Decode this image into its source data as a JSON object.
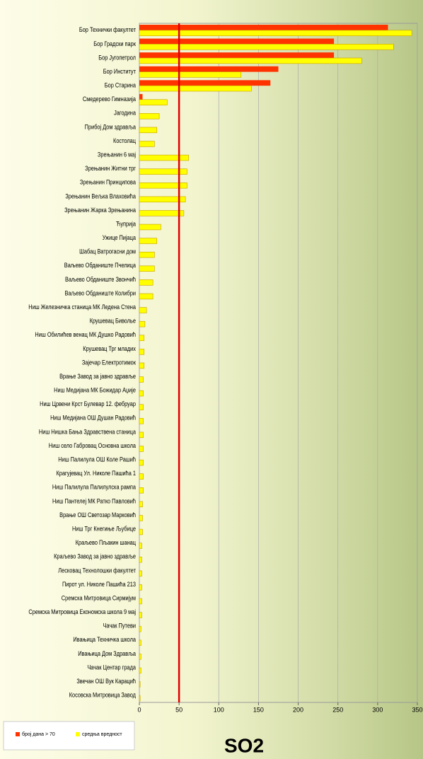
{
  "chart_data": {
    "type": "bar",
    "orientation": "horizontal",
    "title": "SO2",
    "categories": [
      "Бор Технички факултет",
      "Бор Градски парк",
      "Бор Југопетрол",
      "Бор Институт",
      "Бор Старина",
      "Смедерево Гимназија",
      "Јагодина",
      "Прибој Дом здравља",
      "Костолац",
      "Зрењанин 6 мај",
      "Зрењанин Житни трг",
      "Зрењанин Принципова",
      "Зрењанин Вељка Влаховића",
      "Зрењанин Жарка Зрењанина",
      "Ћуприја",
      "Ужице Пијаца",
      "Шабац Ватрогасни дом",
      "Ваљево Обданиште Пчелица",
      "Ваљево Обданиште Звончић",
      "Ваљево Обданиште Колибри",
      "Ниш Железничка станица МК Ледена Стена",
      "Крушевац Биволье",
      "Ниш Обилићев венац МК Душко Радовић",
      "Крушевац Трг младих",
      "Зајечар Електротимок",
      "Врање Завод за јавно здравље",
      "Ниш Медијана МК Божидар Аџије",
      "Ниш Црвени Крст Булевар 12. фебруар",
      "Ниш Медијана ОШ Душан Радовић",
      "Ниш Нишка Бања Здравствена станица",
      "Ниш село Габровац Основна школа",
      "Ниш Палилула ОШ Коле Рашић",
      "Крагујевац Ул. Николе Пашића 1",
      "Ниш Палилула Палилулска рампа",
      "Ниш Пантелеј МК Ратко Павловић",
      "Врање ОШ Светозар Марковић",
      "Ниш Трг Кнегиње Љубице",
      "Краљево Пљакин шанац",
      "Краљево Завод за јавно здравље",
      "Лесковац Технолошки факултет",
      "Пирот ул. Николе Пашића 213",
      "Сремска Митровица Сирмијум",
      "Сремска Митровица Економска школа 9 мај",
      "Чачак Путеви",
      "Ивањица Техничка школа",
      "Ивањица Дом Здравља",
      "Чачак Центар града",
      "Звечан ОШ Вук Карацић",
      "Косовска Митровица Завод"
    ],
    "series": [
      {
        "name": "број дана > 70",
        "color": "#ff3300",
        "values": [
          313,
          245,
          245,
          175,
          165,
          4,
          0,
          0,
          0,
          0,
          0,
          0,
          0,
          0,
          0,
          0,
          0,
          0,
          0,
          0,
          0,
          0,
          0,
          0,
          0,
          0,
          0,
          0,
          0,
          0,
          0,
          0,
          0,
          0,
          0,
          0,
          0,
          0,
          0,
          0,
          0,
          0,
          0,
          0,
          0,
          0,
          0,
          0,
          0
        ]
      },
      {
        "name": "средња вредност",
        "color": "#ffff00",
        "values": [
          343,
          320,
          280,
          128,
          141,
          35,
          25,
          22,
          19,
          62,
          60,
          60,
          58,
          56,
          27,
          22,
          19,
          19,
          17,
          17,
          9,
          7,
          6,
          6,
          6,
          5,
          5,
          5,
          5,
          5,
          5,
          5,
          5,
          5,
          4,
          4,
          4,
          3,
          3,
          3,
          3,
          3,
          3,
          2,
          2,
          2,
          2,
          1,
          1
        ]
      }
    ],
    "xlim": [
      0,
      350
    ],
    "xticks": [
      0,
      50,
      100,
      150,
      200,
      250,
      300,
      350
    ],
    "reference_line": 50,
    "reference_color": "#e00000",
    "grid": true
  }
}
